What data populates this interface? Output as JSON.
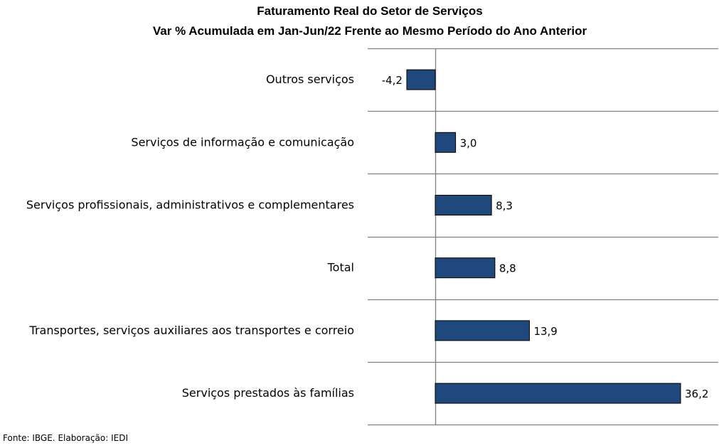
{
  "chart_data": {
    "type": "bar",
    "orientation": "horizontal",
    "title": "Faturamento Real do Setor de Serviços",
    "subtitle": "Var % Acumulada em Jan-Jun/22 Frente ao Mesmo Período do Ano Anterior",
    "categories": [
      "Outros serviços",
      "Serviços de informação e comunicação",
      "Serviços profissionais, administrativos e complementares",
      "Total",
      "Transportes, serviços auxiliares aos transportes e correio",
      "Serviços prestados às famílias"
    ],
    "values": [
      -4.2,
      3.0,
      8.3,
      8.8,
      13.9,
      36.2
    ],
    "value_labels": [
      "-4,2",
      "3,0",
      "8,3",
      "8,8",
      "13,9",
      "36,2"
    ],
    "xlim": [
      -10,
      42
    ],
    "grid": true,
    "bar_color": "#1F497D",
    "source": "Fonte: IBGE. Elaboração: IEDI"
  }
}
